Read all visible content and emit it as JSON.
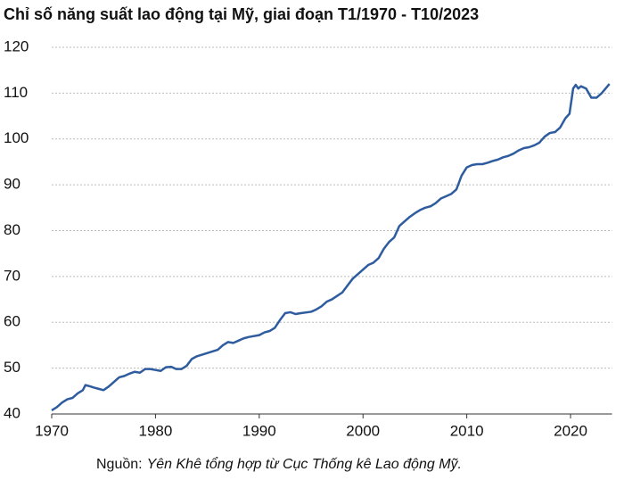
{
  "chart_data": {
    "type": "line",
    "title": "Chỉ số năng suất lao động tại Mỹ, giai đoạn T1/1970 - T10/2023",
    "source_label": "Nguồn:",
    "source": "Yên Khê tổng hợp từ Cục Thống kê Lao động Mỹ.",
    "x": [
      1970,
      1970.5,
      1971,
      1971.5,
      1972,
      1972.5,
      1973,
      1973.25,
      1973.75,
      1974,
      1974.5,
      1975,
      1975.5,
      1976,
      1976.5,
      1977,
      1977.5,
      1978,
      1978.5,
      1979,
      1979.5,
      1980,
      1980.5,
      1981,
      1981.5,
      1982,
      1982.5,
      1983,
      1983.5,
      1984,
      1985,
      1986,
      1986.5,
      1987,
      1987.5,
      1988,
      1988.5,
      1989,
      1990,
      1990.5,
      1991,
      1991.5,
      1992,
      1992.5,
      1993,
      1993.5,
      1994,
      1995,
      1995.5,
      1996,
      1996.5,
      1997,
      1998,
      1998.5,
      1999,
      1999.5,
      2000,
      2000.5,
      2001,
      2001.5,
      2002,
      2002.5,
      2003,
      2003.5,
      2004,
      2004.5,
      2005,
      2005.5,
      2006,
      2006.5,
      2007,
      2007.5,
      2008,
      2008.5,
      2009,
      2009.5,
      2010,
      2010.5,
      2011,
      2011.5,
      2012,
      2012.5,
      2013,
      2013.5,
      2014,
      2014.5,
      2015,
      2015.5,
      2016,
      2016.5,
      2017,
      2017.5,
      2018,
      2018.5,
      2019,
      2019.5,
      2019.9,
      2020.25,
      2020.5,
      2020.75,
      2021,
      2021.5,
      2022,
      2022.5,
      2023,
      2023.75
    ],
    "values": [
      40.8,
      41.5,
      42.5,
      43.2,
      43.5,
      44.5,
      45.2,
      46.3,
      46,
      45.8,
      45.5,
      45.2,
      46,
      47,
      48,
      48.3,
      48.8,
      49.2,
      49,
      49.8,
      49.8,
      49.6,
      49.4,
      50.2,
      50.3,
      49.8,
      49.8,
      50.5,
      52,
      52.6,
      53.3,
      54,
      55,
      55.7,
      55.5,
      56,
      56.5,
      56.8,
      57.2,
      57.8,
      58.1,
      58.8,
      60.5,
      62,
      62.2,
      61.8,
      62,
      62.3,
      62.8,
      63.5,
      64.5,
      65,
      66.5,
      68,
      69.5,
      70.5,
      71.5,
      72.5,
      73,
      74,
      76,
      77.5,
      78.5,
      81,
      82,
      83,
      83.8,
      84.5,
      85,
      85.3,
      86,
      87,
      87.5,
      88,
      89,
      92,
      93.8,
      94.3,
      94.5,
      94.5,
      94.8,
      95.2,
      95.5,
      96,
      96.3,
      96.8,
      97.5,
      98,
      98.2,
      98.6,
      99.2,
      100.5,
      101.3,
      101.5,
      102.5,
      104.5,
      105.5,
      111,
      111.8,
      111,
      111.5,
      111,
      109,
      109,
      110,
      112
    ],
    "color": "#2e5c9e",
    "xlim": [
      1970,
      2024
    ],
    "xticks": [
      1970,
      1980,
      1990,
      2000,
      2010,
      2020
    ],
    "ylim": [
      40,
      120
    ],
    "yticks": [
      40,
      50,
      60,
      70,
      80,
      90,
      100,
      110,
      120
    ],
    "grid": true
  }
}
